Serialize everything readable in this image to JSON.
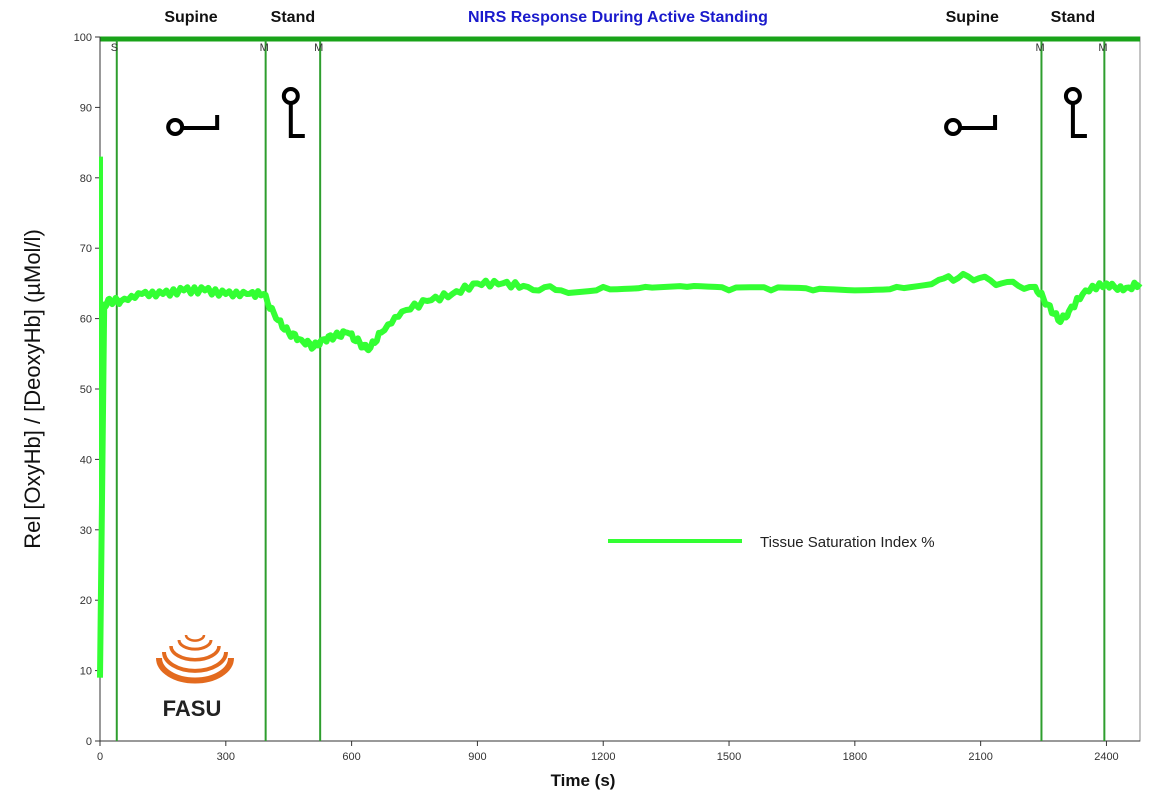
{
  "chart_data": {
    "type": "line",
    "title": "NIRS Response During Active Standing",
    "title_color": "#1a1acc",
    "xlabel": "Time (s)",
    "ylabel": "Rel [OxyHb] / [DeoxyHb] (µMol/l)",
    "xlim": [
      0,
      2480
    ],
    "ylim": [
      0,
      100
    ],
    "x_ticks": [
      0,
      300,
      600,
      900,
      1200,
      1500,
      1800,
      2100,
      2400
    ],
    "y_ticks": [
      0,
      10,
      20,
      30,
      40,
      50,
      60,
      70,
      80,
      90,
      100
    ],
    "grid": false,
    "legend_position": "center-right",
    "series": [
      {
        "name": "Tissue Saturation Index %",
        "color": "#33ff33",
        "x": [
          0,
          10,
          25,
          50,
          100,
          150,
          200,
          250,
          300,
          350,
          390,
          420,
          450,
          480,
          510,
          530,
          560,
          590,
          620,
          640,
          670,
          720,
          780,
          840,
          900,
          960,
          1020,
          1100,
          1200,
          1300,
          1400,
          1500,
          1600,
          1700,
          1800,
          1900,
          2000,
          2070,
          2150,
          2230,
          2260,
          2290,
          2310,
          2350,
          2400,
          2440,
          2480
        ],
        "y": [
          9,
          62,
          62.5,
          62.5,
          63.5,
          63.5,
          64,
          64,
          63.5,
          63.5,
          63.5,
          60,
          58,
          57,
          56,
          57,
          57.5,
          58,
          56.5,
          55.5,
          58,
          61,
          62.5,
          63.5,
          65,
          65,
          64.5,
          64,
          64.5,
          64.5,
          64.5,
          64,
          64,
          64,
          64,
          64.5,
          65.5,
          66,
          65,
          64.5,
          62,
          59.5,
          61,
          64,
          65,
          64,
          65
        ]
      }
    ]
  },
  "event_lines": [
    {
      "x": 40,
      "marker": "S"
    },
    {
      "x": 395,
      "marker": "M"
    },
    {
      "x": 525,
      "marker": "M"
    },
    {
      "x": 2245,
      "marker": "M"
    },
    {
      "x": 2395,
      "marker": "M"
    }
  ],
  "phase_labels": [
    {
      "text": "Supine",
      "x": 217
    },
    {
      "text": "Stand",
      "x": 460
    },
    {
      "text": "Supine",
      "x": 2080
    },
    {
      "text": "Stand",
      "x": 2320
    }
  ],
  "pose_icons": [
    {
      "name": "supine-pose-icon",
      "type": "supine",
      "x": 215
    },
    {
      "name": "stand-pose-icon",
      "type": "stand",
      "x": 455
    },
    {
      "name": "supine-pose-icon",
      "type": "supine",
      "x": 2070
    },
    {
      "name": "stand-pose-icon",
      "type": "stand",
      "x": 2320
    }
  ],
  "logo": {
    "text": "FASU",
    "color": "#e36a1e"
  },
  "colors": {
    "series": "#33ff33",
    "event_line": "#2e9e2e",
    "axis": "#333333"
  }
}
